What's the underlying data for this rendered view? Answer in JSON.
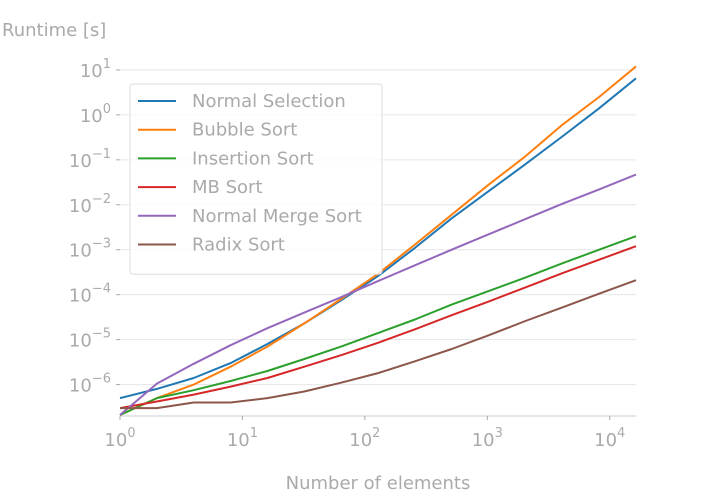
{
  "chart_data": {
    "type": "line",
    "xlabel": "Number of elements",
    "ylabel": "Runtime [s]",
    "xscale": "log",
    "yscale": "log",
    "xlim": [
      1,
      16384
    ],
    "ylim": [
      2e-07,
      15
    ],
    "x_ticks": [
      {
        "value": 1,
        "base": "10",
        "exp": "0"
      },
      {
        "value": 10,
        "base": "10",
        "exp": "1"
      },
      {
        "value": 100,
        "base": "10",
        "exp": "2"
      },
      {
        "value": 1000,
        "base": "10",
        "exp": "3"
      },
      {
        "value": 10000,
        "base": "10",
        "exp": "4"
      }
    ],
    "y_ticks": [
      {
        "value": 1e-06,
        "base": "10",
        "exp": "−6"
      },
      {
        "value": 1e-05,
        "base": "10",
        "exp": "−5"
      },
      {
        "value": 0.0001,
        "base": "10",
        "exp": "−4"
      },
      {
        "value": 0.001,
        "base": "10",
        "exp": "−3"
      },
      {
        "value": 0.01,
        "base": "10",
        "exp": "−2"
      },
      {
        "value": 0.1,
        "base": "10",
        "exp": "−1"
      },
      {
        "value": 1,
        "base": "10",
        "exp": "0"
      },
      {
        "value": 10,
        "base": "10",
        "exp": "1"
      }
    ],
    "grid": "horizontal",
    "legend": "upper-left",
    "x": [
      1,
      2,
      4,
      8,
      16,
      32,
      64,
      128,
      256,
      512,
      1024,
      2048,
      4096,
      8192,
      16384
    ],
    "series": [
      {
        "name": "Normal Selection",
        "color": "#1f77b4",
        "values": [
          5e-07,
          8e-07,
          1.4e-06,
          3e-06,
          8e-06,
          2.3e-05,
          7.5e-05,
          0.00026,
          0.0011,
          0.005,
          0.02,
          0.08,
          0.33,
          1.4,
          6.5
        ]
      },
      {
        "name": "Bubble Sort",
        "color": "#ff7f0e",
        "values": [
          2.1e-07,
          5e-07,
          1e-06,
          2.5e-06,
          7e-06,
          2.3e-05,
          8e-05,
          0.00029,
          0.0013,
          0.006,
          0.028,
          0.12,
          0.6,
          2.5,
          12
        ]
      },
      {
        "name": "Insertion Sort",
        "color": "#2ca02c",
        "values": [
          2.1e-07,
          5e-07,
          7.5e-07,
          1.2e-06,
          2e-06,
          3.7e-06,
          7e-06,
          1.4e-05,
          2.8e-05,
          6e-05,
          0.00012,
          0.00024,
          0.0005,
          0.001,
          0.002
        ]
      },
      {
        "name": "MB Sort",
        "color": "#d62728",
        "values": [
          3e-07,
          4.2e-07,
          6e-07,
          9e-07,
          1.4e-06,
          2.5e-06,
          4.5e-06,
          8.5e-06,
          1.7e-05,
          3.5e-05,
          7e-05,
          0.000145,
          0.0003,
          0.0006,
          0.0012
        ]
      },
      {
        "name": "Normal Merge Sort",
        "color": "#9467bd",
        "values": [
          2.1e-07,
          1.05e-06,
          2.9e-06,
          7.5e-06,
          1.8e-05,
          4e-05,
          8.8e-05,
          0.0002,
          0.00045,
          0.001,
          0.0022,
          0.0048,
          0.0105,
          0.022,
          0.047
        ]
      },
      {
        "name": "Radix Sort",
        "color": "#8c564b",
        "values": [
          3e-07,
          3e-07,
          4e-07,
          4e-07,
          5e-07,
          7e-07,
          1.1e-06,
          1.8e-06,
          3.3e-06,
          6.2e-06,
          1.25e-05,
          2.6e-05,
          5.2e-05,
          0.000105,
          0.00021
        ]
      }
    ]
  }
}
